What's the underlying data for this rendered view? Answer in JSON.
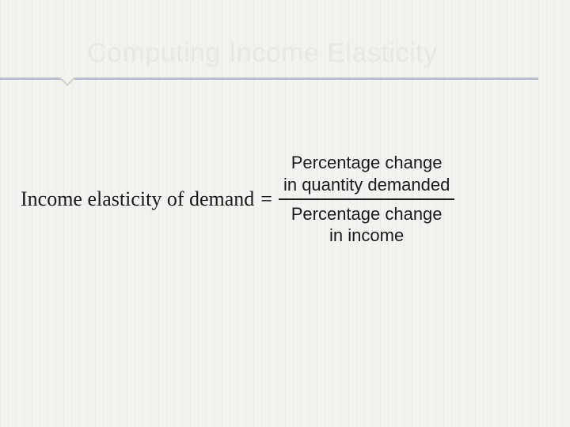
{
  "slide": {
    "title": "Computing Income Elasticity",
    "title_color": "#e8e8e3",
    "title_fontsize": 34,
    "rule_color": "#b5bfcf",
    "background_color": "#f2f2ef",
    "stripe_color": "#eaeae6"
  },
  "formula": {
    "lhs": "Income elasticity of demand",
    "equals": "=",
    "numerator_line1": "Percentage change",
    "numerator_line2": "in quantity demanded",
    "denominator_line1": "Percentage change",
    "denominator_line2": "in income",
    "text_color": "#1a1a1a",
    "lhs_fontsize": 26,
    "frac_fontsize": 22
  }
}
